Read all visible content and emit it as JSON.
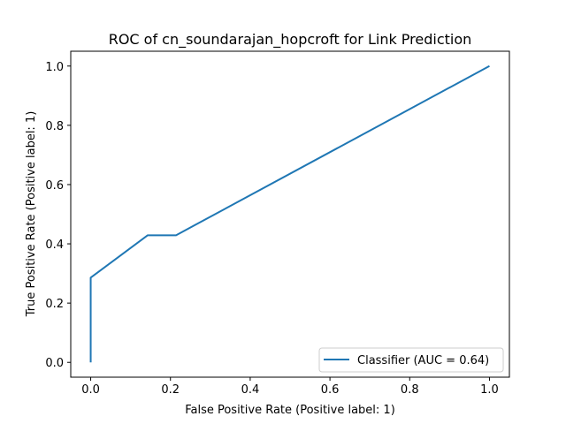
{
  "chart_data": {
    "type": "line",
    "title": "ROC of cn_soundarajan_hopcroft for Link Prediction",
    "xlabel": "False Positive Rate (Positive label: 1)",
    "ylabel": "True Positive Rate (Positive label: 1)",
    "xlim": [
      -0.05,
      1.05
    ],
    "ylim": [
      -0.05,
      1.05
    ],
    "xticks": [
      "0.0",
      "0.2",
      "0.4",
      "0.6",
      "0.8",
      "1.0"
    ],
    "yticks": [
      "0.0",
      "0.2",
      "0.4",
      "0.6",
      "0.8",
      "1.0"
    ],
    "grid": false,
    "legend_position": "lower-right",
    "series": [
      {
        "name": "Classifier (AUC = 0.64)",
        "color": "#1f77b4",
        "x": [
          0.0,
          0.0,
          0.143,
          0.214,
          1.0
        ],
        "y": [
          0.0,
          0.286,
          0.429,
          0.429,
          1.0
        ]
      }
    ]
  }
}
